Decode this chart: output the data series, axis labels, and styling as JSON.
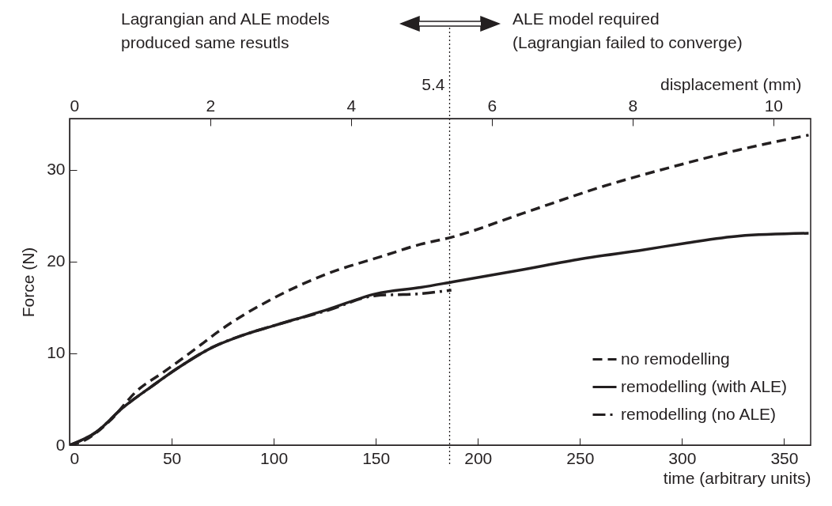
{
  "chart_data": {
    "type": "line",
    "xlabel": "time (arbitrary units)",
    "ylabel": "Force (N)",
    "x2label": "displacement (mm)",
    "xlim": [
      0,
      363
    ],
    "xticks": [
      0,
      50,
      100,
      150,
      200,
      250,
      300,
      350
    ],
    "x2lim": [
      0,
      10.53
    ],
    "x2ticks": [
      0,
      2,
      4,
      6,
      8,
      10
    ],
    "ylim": [
      0,
      35.6
    ],
    "yticks": [
      0,
      10,
      20,
      30
    ],
    "legend": "bottom right",
    "series": [
      {
        "name": "no remodelling",
        "color": "#231f20",
        "line_style": "dashed",
        "x": [
          0,
          6.2,
          19.5,
          32.9,
          46.3,
          62.3,
          73,
          99.7,
          126.5,
          153.2,
          172,
          187.7,
          221.1,
          261.2,
          301.3,
          328,
          362
        ],
        "values": [
          0,
          0.4,
          2.6,
          5.9,
          8,
          10.6,
          12.4,
          16,
          18.7,
          20.6,
          21.9,
          22.7,
          25.2,
          28.2,
          30.7,
          32.2,
          33.8
        ]
      },
      {
        "name": "remodelling (with ALE)",
        "color": "#231f20",
        "line_style": "solid",
        "x": [
          0,
          12.9,
          26.2,
          39.6,
          53,
          70.3,
          86.4,
          99.7,
          126.5,
          150,
          172,
          187.7,
          221,
          250.5,
          281.2,
          301.3,
          328,
          362
        ],
        "values": [
          0,
          1.4,
          4.1,
          6.3,
          8.4,
          10.7,
          12.1,
          13,
          14.8,
          16.5,
          17.2,
          17.8,
          19.1,
          20.3,
          21.3,
          22,
          22.8,
          23.1
        ]
      },
      {
        "name": "remodelling (no ALE)",
        "color": "#231f20",
        "line_style": "dashdot",
        "x": [
          0,
          12.9,
          26.2,
          39.6,
          53,
          70.3,
          86.4,
          99.7,
          126.5,
          150,
          171,
          187
        ],
        "values": [
          0,
          1.4,
          4.1,
          6.3,
          8.4,
          10.7,
          12.1,
          13,
          14.7,
          16.3,
          16.5,
          16.9
        ]
      }
    ],
    "ref_lines": [
      {
        "axis": "x2",
        "value": 5.4,
        "label": "5.4",
        "line_style": "dotted"
      }
    ],
    "annotations": [
      "Lagrangian and ALE models\nproduced same resutls",
      "ALE model required\n(Lagrangian failed to converge)"
    ]
  }
}
